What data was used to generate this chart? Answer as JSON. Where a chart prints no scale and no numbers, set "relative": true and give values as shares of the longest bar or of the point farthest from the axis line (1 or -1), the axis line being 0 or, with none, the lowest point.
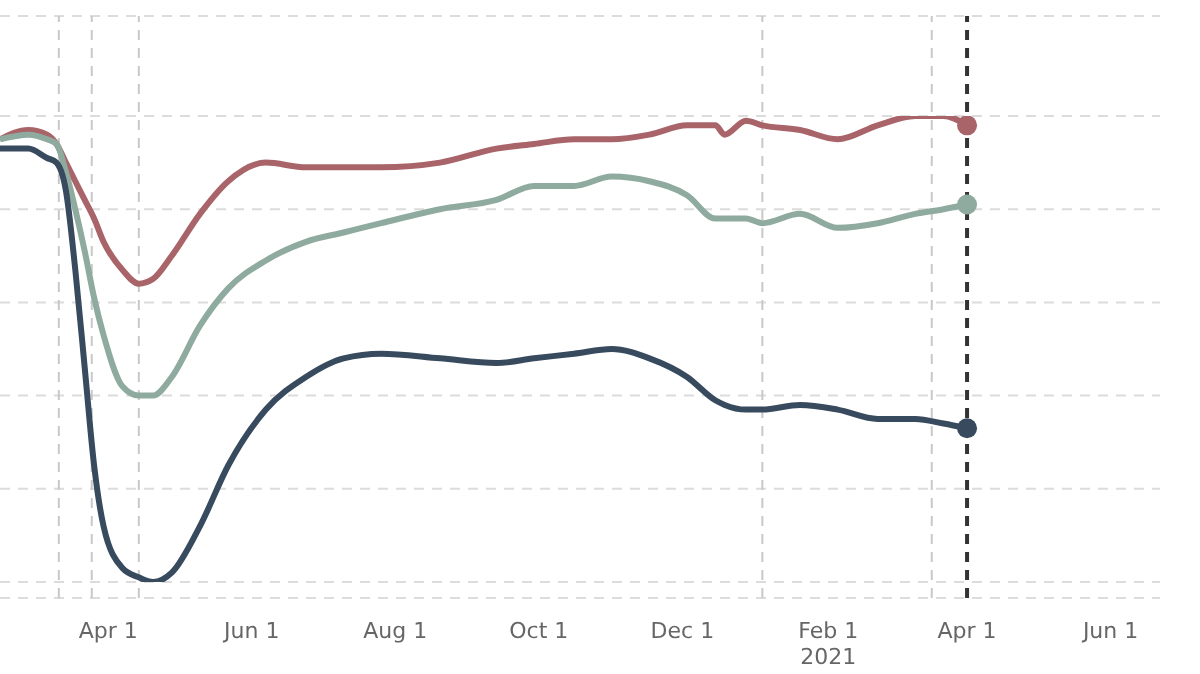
{
  "chart_data": {
    "type": "line",
    "relative": true,
    "grid": "y",
    "line_style": "solid",
    "x": [
      "2020-02-15",
      "2020-02-27",
      "2020-03-06",
      "2020-03-10",
      "2020-03-14",
      "2020-03-18",
      "2020-03-22",
      "2020-03-26",
      "2020-03-30",
      "2020-04-07",
      "2020-04-14",
      "2020-04-20",
      "2020-04-28",
      "2020-05-10",
      "2020-05-22",
      "2020-06-07",
      "2020-06-24",
      "2020-07-10",
      "2020-07-26",
      "2020-08-20",
      "2020-09-13",
      "2020-09-29",
      "2020-10-16",
      "2020-11-01",
      "2020-11-17",
      "2020-12-03",
      "2020-12-15",
      "2020-12-19",
      "2020-12-28",
      "2021-01-04",
      "2021-01-20",
      "2021-02-05",
      "2021-02-22",
      "2021-03-10",
      "2021-03-22",
      "2021-04-01"
    ],
    "xlim": [
      "2020-02-15",
      "2021-06-22"
    ],
    "xticks": [
      {
        "value": "2020-04-01",
        "label": "Apr 1"
      },
      {
        "value": "2020-06-01",
        "label": "Jun 1"
      },
      {
        "value": "2020-08-01",
        "label": "Aug 1"
      },
      {
        "value": "2020-10-01",
        "label": "Oct 1"
      },
      {
        "value": "2020-12-01",
        "label": "Dec 1"
      },
      {
        "value": "2021-02-01",
        "label": "Feb 1\n2021"
      },
      {
        "value": "2021-04-01",
        "label": "Apr 1"
      },
      {
        "value": "2021-06-01",
        "label": "Jun 1"
      }
    ],
    "ref_lines": [
      {
        "axis": "x",
        "value": "2020-03-11",
        "color": "#c8c8c8",
        "line_style": "dashed"
      },
      {
        "axis": "x",
        "value": "2020-03-25",
        "color": "#c8c8c8",
        "line_style": "dashed"
      },
      {
        "axis": "x",
        "value": "2020-04-14",
        "color": "#c8c8c8",
        "line_style": "dashed"
      },
      {
        "axis": "x",
        "value": "2021-01-04",
        "color": "#c8c8c8",
        "line_style": "dashed"
      },
      {
        "axis": "x",
        "value": "2021-03-17",
        "color": "#c8c8c8",
        "line_style": "dashed"
      },
      {
        "axis": "x",
        "value": "2021-04-01",
        "color": "#333333",
        "line_style": "dashed"
      }
    ],
    "series": [
      {
        "color": "#a86469",
        "values": [
          0.95,
          0.97,
          0.96,
          0.94,
          0.9,
          0.86,
          0.82,
          0.78,
          0.73,
          0.67,
          0.64,
          0.65,
          0.7,
          0.79,
          0.86,
          0.9,
          0.89,
          0.89,
          0.89,
          0.9,
          0.93,
          0.94,
          0.95,
          0.95,
          0.96,
          0.98,
          0.98,
          0.96,
          0.99,
          0.98,
          0.97,
          0.95,
          0.98,
          1,
          1,
          0.98
        ]
      },
      {
        "color": "#8fab9f",
        "values": [
          0.95,
          0.96,
          0.95,
          0.94,
          0.88,
          0.8,
          0.71,
          0.61,
          0.53,
          0.42,
          0.4,
          0.4,
          0.44,
          0.55,
          0.63,
          0.69,
          0.73,
          0.75,
          0.77,
          0.8,
          0.82,
          0.85,
          0.85,
          0.87,
          0.86,
          0.83,
          0.78,
          0.78,
          0.78,
          0.77,
          0.79,
          0.76,
          0.77,
          0.79,
          0.8,
          0.81
        ]
      },
      {
        "color": "#374a5e",
        "values": [
          0.93,
          0.93,
          0.91,
          0.9,
          0.84,
          0.67,
          0.46,
          0.25,
          0.12,
          0.03,
          0.01,
          0,
          0.02,
          0.12,
          0.25,
          0.37,
          0.44,
          0.48,
          0.49,
          0.48,
          0.47,
          0.48,
          0.49,
          0.5,
          0.48,
          0.44,
          0.39,
          0.38,
          0.37,
          0.37,
          0.38,
          0.37,
          0.35,
          0.35,
          0.34,
          0.33
        ]
      },
      {
        "type": "scatter",
        "marker": "circle",
        "color": "#a86469",
        "x": [
          "2021-04-01"
        ],
        "values": [
          0.98
        ]
      },
      {
        "type": "scatter",
        "marker": "circle",
        "color": "#8fab9f",
        "x": [
          "2021-04-01"
        ],
        "values": [
          0.81
        ]
      },
      {
        "type": "scatter",
        "marker": "circle",
        "color": "#374a5e",
        "x": [
          "2021-04-01"
        ],
        "values": [
          0.33
        ]
      }
    ]
  }
}
